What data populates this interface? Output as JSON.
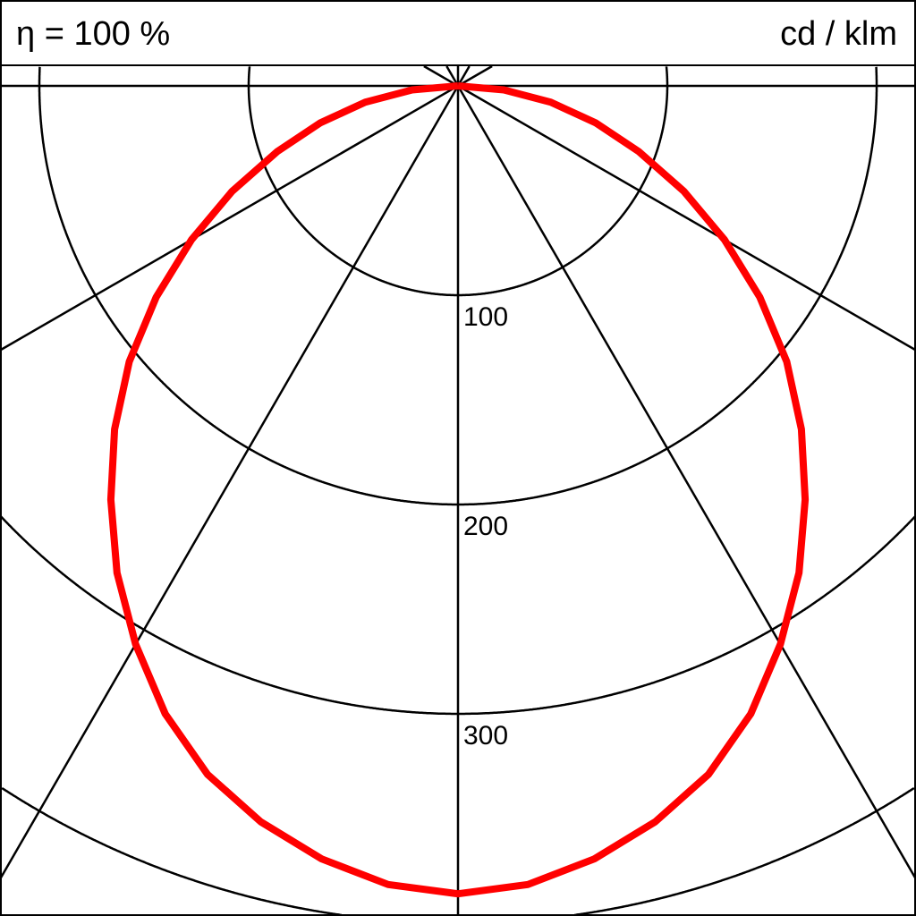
{
  "header": {
    "efficiency_label": "η = 100 %",
    "unit_label": "cd / klm"
  },
  "chart_data": {
    "type": "polar-line",
    "title": "",
    "unit": "cd / klm",
    "radial_ticks": [
      100,
      200,
      300,
      400
    ],
    "radial_tick_labels": [
      "100",
      "200",
      "300"
    ],
    "angular_grid_step_deg": 30,
    "orientation": "0° pointing down (nadir)",
    "grid": true,
    "series": [
      {
        "color": "#ff0000",
        "symmetric": true,
        "angles_deg": [
          0,
          5,
          10,
          15,
          20,
          25,
          30,
          35,
          40,
          45,
          50,
          55,
          60,
          65,
          70,
          75,
          80,
          85,
          90
        ],
        "values": [
          386,
          383,
          375,
          364,
          350,
          331,
          308,
          284,
          258,
          232,
          205,
          176,
          147,
          119,
          92,
          68,
          45,
          22,
          0
        ]
      }
    ]
  },
  "colors": {
    "curve": "#ff0000",
    "grid": "#000000",
    "background": "#ffffff"
  }
}
